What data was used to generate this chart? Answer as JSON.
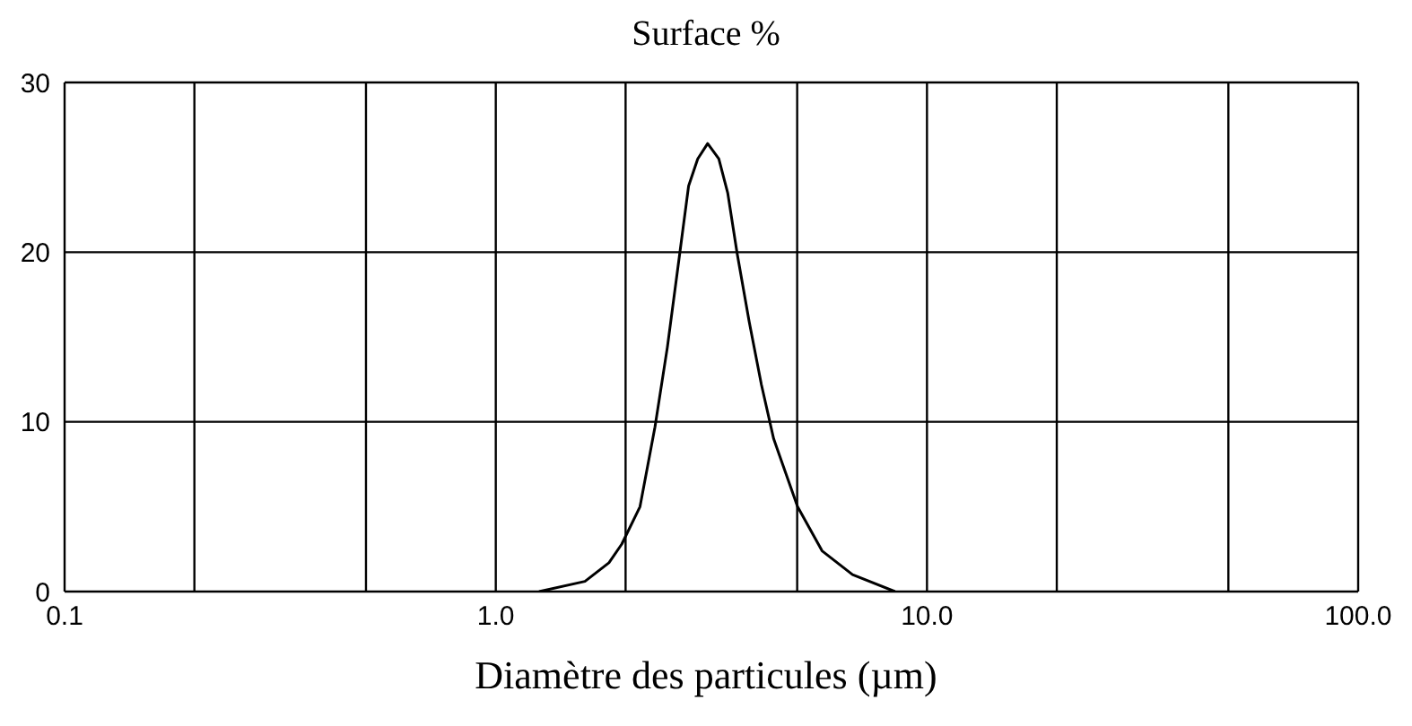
{
  "chart_data": {
    "type": "line",
    "title": "Surface %",
    "xlabel": "Diamètre des particules (µm)",
    "x": [
      1.26,
      1.61,
      1.83,
      1.96,
      2.16,
      2.34,
      2.5,
      2.67,
      2.8,
      2.94,
      3.1,
      3.29,
      3.45,
      3.63,
      3.87,
      4.13,
      4.41,
      5.01,
      5.71,
      6.72,
      8.43
    ],
    "series": [
      {
        "color": "#000000",
        "values": [
          0,
          0.6,
          1.7,
          2.8,
          5.0,
          9.7,
          14.4,
          19.9,
          23.9,
          25.5,
          26.4,
          25.5,
          23.5,
          19.9,
          15.9,
          12.2,
          9.0,
          5.0,
          2.4,
          1.0,
          0
        ]
      }
    ],
    "log": "x",
    "xlim": [
      0.1,
      100
    ],
    "xticks": [
      0.1,
      {
        "value": 0.2,
        "label": null
      },
      {
        "value": 0.5,
        "label": null
      },
      {
        "value": 1,
        "label": "1.0"
      },
      {
        "value": 2,
        "label": null
      },
      {
        "value": 5,
        "label": null
      },
      {
        "value": 10,
        "label": "10.0"
      },
      {
        "value": 20,
        "label": null
      },
      {
        "value": 50,
        "label": null
      },
      {
        "value": 100,
        "label": "100.0"
      }
    ],
    "ylim": [
      0,
      30
    ],
    "yticks": [
      0,
      10,
      20,
      30
    ],
    "grid": true,
    "marker": "none",
    "line_style": "solid"
  }
}
